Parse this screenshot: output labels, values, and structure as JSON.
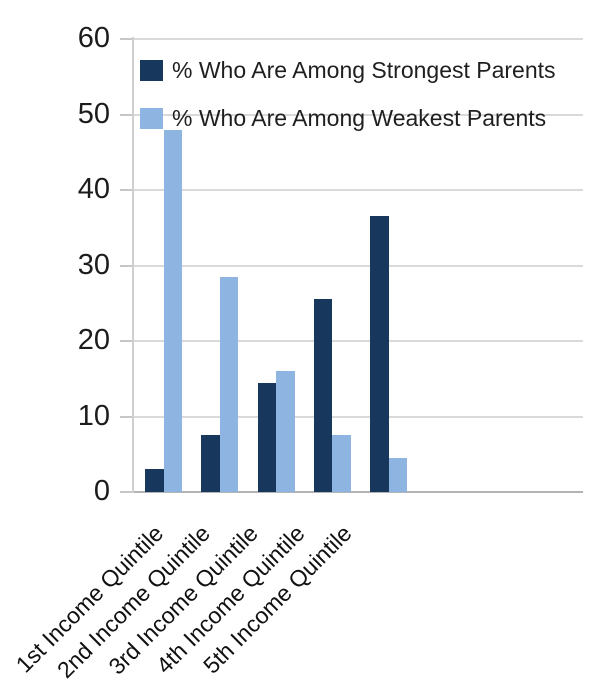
{
  "chart_data": {
    "type": "bar",
    "title": "",
    "xlabel": "",
    "ylabel": "",
    "categories": [
      "1st Income Quintile",
      "2nd Income Quintile",
      "3rd Income Quintile",
      "4th Income Quintile",
      "5th Income Quintile"
    ],
    "series": [
      {
        "name": "% Who Are Among Strongest Parents",
        "key": "strongest",
        "color": "#17375D",
        "values": [
          3,
          7.5,
          14.5,
          25.5,
          36.5
        ]
      },
      {
        "name": "% Who Are Among Weakest Parents",
        "key": "weakest",
        "color": "#8EB4E2",
        "values": [
          48,
          28.5,
          16,
          7.5,
          4.5
        ]
      }
    ],
    "yticks": [
      0,
      10,
      20,
      30,
      40,
      50,
      60
    ],
    "ylim": [
      0,
      60
    ],
    "grid": true,
    "grid_color": "#d9d9d9",
    "baseline_color": "#b3b3b3",
    "legend_position": "top-left-inside",
    "background_color": "#ffffff"
  }
}
